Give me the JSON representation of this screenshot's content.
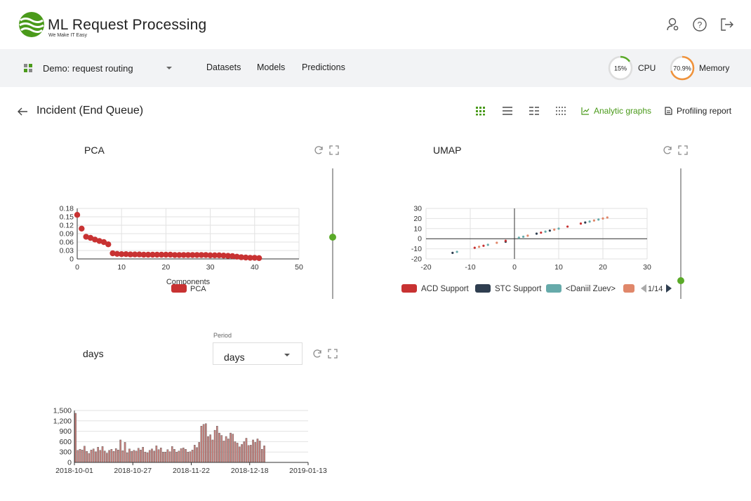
{
  "header": {
    "app_title": "ML Request Processing",
    "tagline": "We Make IT Easy",
    "icons": [
      "user-settings-icon",
      "help-icon",
      "logout-icon"
    ]
  },
  "nav": {
    "project": "Demo: request routing",
    "links": [
      "Datasets",
      "Models",
      "Predictions"
    ],
    "cpu": {
      "value": "15%",
      "label": "CPU",
      "percent": 15
    },
    "memory": {
      "value": "70.9%",
      "label": "Memory",
      "percent": 70.9
    }
  },
  "page": {
    "title": "Incident (End Queue)",
    "analytic_link": "Analytic graphs",
    "profiling_link": "Profiling report"
  },
  "colors": {
    "accent": "#4a9a1a",
    "pca_red": "#c83232",
    "gauge_cpu": "#5aaa28",
    "gauge_mem": "#f0923a"
  },
  "pca": {
    "title": "PCA",
    "chart_data": {
      "type": "scatter",
      "xlabel": "Components",
      "xlim": [
        0,
        50
      ],
      "ylim": [
        0,
        0.18
      ],
      "xticks": [
        "0",
        "10",
        "20",
        "30",
        "40",
        "50"
      ],
      "yticks": [
        "0",
        "0.03",
        "0.06",
        "0.09",
        "0.12",
        "0.15",
        "0.18"
      ],
      "legend": "PCA",
      "x": [
        0,
        1,
        2,
        3,
        4,
        5,
        6,
        7,
        8,
        9,
        10,
        11,
        12,
        13,
        14,
        15,
        16,
        17,
        18,
        19,
        20,
        21,
        22,
        23,
        24,
        25,
        26,
        27,
        28,
        29,
        30,
        31,
        32,
        33,
        34,
        35,
        36,
        37,
        38,
        39,
        40,
        41
      ],
      "y": [
        0.157,
        0.108,
        0.079,
        0.075,
        0.069,
        0.064,
        0.06,
        0.052,
        0.02,
        0.018,
        0.017,
        0.017,
        0.016,
        0.016,
        0.016,
        0.015,
        0.015,
        0.015,
        0.015,
        0.015,
        0.015,
        0.015,
        0.014,
        0.014,
        0.014,
        0.014,
        0.014,
        0.014,
        0.014,
        0.014,
        0.013,
        0.013,
        0.013,
        0.012,
        0.011,
        0.01,
        0.008,
        0.006,
        0.005,
        0.004,
        0.004,
        0.003
      ]
    }
  },
  "umap": {
    "title": "UMAP",
    "chart_data": {
      "type": "scatter",
      "xlim": [
        -20,
        30
      ],
      "ylim": [
        -20,
        30
      ],
      "xticks": [
        "-20",
        "-10",
        "0",
        "10",
        "20",
        "30"
      ],
      "yticks": [
        "-20",
        "-10",
        "0",
        "10",
        "20",
        "30"
      ],
      "legend": [
        "ACD Support",
        "STC Support",
        "<Daniil Zuev>"
      ],
      "legend_colors": [
        "#c83232",
        "#2f3e50",
        "#66aaaa",
        "#e0876a"
      ],
      "legend_page": "1/14",
      "points": [
        {
          "x": -14,
          "y": -14,
          "c": "#2f3e50"
        },
        {
          "x": -13,
          "y": -13,
          "c": "#66aaaa"
        },
        {
          "x": -9,
          "y": -9,
          "c": "#c83232"
        },
        {
          "x": -8,
          "y": -8,
          "c": "#e0876a"
        },
        {
          "x": -7,
          "y": -7,
          "c": "#c83232"
        },
        {
          "x": -6,
          "y": -6,
          "c": "#66aaaa"
        },
        {
          "x": -4,
          "y": -4,
          "c": "#e0876a"
        },
        {
          "x": -2,
          "y": -3,
          "c": "#2f3e50"
        },
        {
          "x": -2,
          "y": -2,
          "c": "#c83232"
        },
        {
          "x": 1,
          "y": 1,
          "c": "#66aaaa"
        },
        {
          "x": 2,
          "y": 2,
          "c": "#66aaaa"
        },
        {
          "x": 3,
          "y": 3,
          "c": "#e0876a"
        },
        {
          "x": 5,
          "y": 5,
          "c": "#2f3e50"
        },
        {
          "x": 6,
          "y": 6,
          "c": "#c83232"
        },
        {
          "x": 7,
          "y": 7,
          "c": "#66aaaa"
        },
        {
          "x": 8,
          "y": 8,
          "c": "#2f3e50"
        },
        {
          "x": 9,
          "y": 9,
          "c": "#e0876a"
        },
        {
          "x": 10,
          "y": 10,
          "c": "#66aaaa"
        },
        {
          "x": 12,
          "y": 12,
          "c": "#c83232"
        },
        {
          "x": 15,
          "y": 15,
          "c": "#c83232"
        },
        {
          "x": 16,
          "y": 16,
          "c": "#2f3e50"
        },
        {
          "x": 17,
          "y": 17,
          "c": "#66aaaa"
        },
        {
          "x": 18,
          "y": 18,
          "c": "#e0876a"
        },
        {
          "x": 19,
          "y": 19,
          "c": "#66aaaa"
        },
        {
          "x": 20,
          "y": 20,
          "c": "#e0876a"
        },
        {
          "x": 21,
          "y": 21,
          "c": "#e0876a"
        }
      ]
    }
  },
  "days": {
    "title": "days",
    "period_label": "Period",
    "period_value": "days",
    "chart_data": {
      "type": "bar",
      "ylim": [
        0,
        1500
      ],
      "yticks": [
        "0",
        "300",
        "600",
        "900",
        "1,200",
        "1,500"
      ],
      "xticks": [
        "2018-10-01",
        "2018-10-27",
        "2018-11-22",
        "2018-12-18",
        "2019-01-13"
      ],
      "start_date": "2018-10-01",
      "values": [
        1420,
        350,
        380,
        360,
        470,
        320,
        260,
        360,
        390,
        310,
        440,
        350,
        460,
        330,
        270,
        350,
        380,
        320,
        400,
        360,
        650,
        340,
        580,
        280,
        390,
        320,
        350,
        330,
        410,
        360,
        440,
        300,
        280,
        350,
        390,
        330,
        480,
        370,
        420,
        300,
        300,
        370,
        310,
        460,
        380,
        300,
        330,
        400,
        420,
        380,
        300,
        310,
        360,
        500,
        430,
        580,
        1050,
        1100,
        1120,
        750,
        800,
        650,
        930,
        1050,
        850,
        780,
        620,
        750,
        680,
        850,
        820,
        600,
        560,
        450,
        520,
        600,
        700,
        490,
        500,
        650,
        580,
        680,
        620,
        380,
        480
      ]
    }
  }
}
